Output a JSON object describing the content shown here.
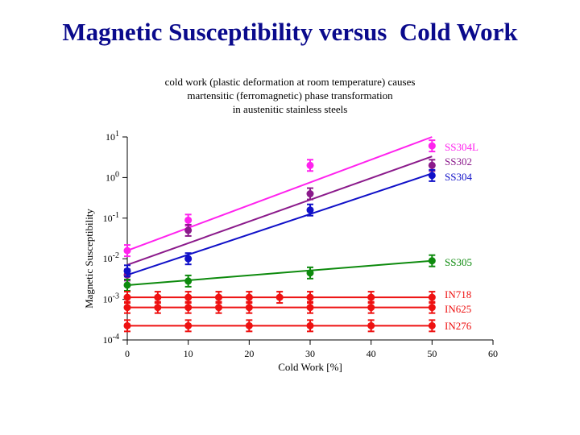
{
  "title": "Magnetic Susceptibility versus  Cold Work",
  "subtitle": [
    "cold work (plastic deformation at room temperature) causes",
    "martensitic (ferromagnetic) phase transformation",
    "in austenitic stainless steels"
  ],
  "chart_data": {
    "type": "scatter",
    "title": "Magnetic Susceptibility versus  Cold Work",
    "xlabel": "Cold Work [%]",
    "ylabel": "Magnetic Susceptibility",
    "xlim": [
      0,
      60
    ],
    "ylim_log10": [
      -4,
      1
    ],
    "yscale": "log",
    "x_ticks": [
      0,
      10,
      20,
      30,
      40,
      50,
      60
    ],
    "y_tick_exponents": [
      1,
      0,
      -1,
      -2,
      -3,
      -4
    ],
    "y_tick_base": "10",
    "series": [
      {
        "name": "SS304L",
        "color": "#ff22ee",
        "x": [
          0,
          10,
          30,
          50
        ],
        "log10_y": [
          -1.8,
          -1.05,
          0.3,
          0.78
        ],
        "fit_log10": [
          -1.8,
          1.0
        ]
      },
      {
        "name": "SS302",
        "color": "#8b1a8b",
        "x": [
          0,
          10,
          30,
          50
        ],
        "log10_y": [
          -2.4,
          -1.3,
          -0.4,
          0.3
        ],
        "fit_log10": [
          -2.15,
          0.52
        ]
      },
      {
        "name": "SS304",
        "color": "#1010c8",
        "x": [
          0,
          10,
          30,
          50
        ],
        "log10_y": [
          -2.3,
          -2.0,
          -0.8,
          0.05
        ],
        "fit_log10": [
          -2.4,
          0.1
        ]
      },
      {
        "name": "SS305",
        "color": "#0d8a0d",
        "x": [
          0,
          10,
          30,
          50
        ],
        "log10_y": [
          -2.65,
          -2.55,
          -2.35,
          -2.05
        ],
        "fit_log10": [
          -2.65,
          -2.05
        ]
      },
      {
        "name": "IN718",
        "color": "#ee1111",
        "x": [
          0,
          5,
          10,
          15,
          20,
          25,
          30,
          40,
          50
        ],
        "log10_y": [
          -2.95,
          -2.95,
          -2.95,
          -2.95,
          -2.95,
          -2.95,
          -2.95,
          -2.95,
          -2.95
        ],
        "fit_log10": [
          -2.95,
          -2.95
        ]
      },
      {
        "name": "IN625",
        "color": "#ee1111",
        "x": [
          0,
          5,
          10,
          15,
          20,
          30,
          40,
          50
        ],
        "log10_y": [
          -3.2,
          -3.2,
          -3.2,
          -3.2,
          -3.2,
          -3.2,
          -3.2,
          -3.2
        ],
        "fit_log10": [
          -3.2,
          -3.2
        ]
      },
      {
        "name": "IN276",
        "color": "#ee1111",
        "x": [
          0,
          10,
          20,
          30,
          40,
          50
        ],
        "log10_y": [
          -3.65,
          -3.65,
          -3.65,
          -3.65,
          -3.65,
          -3.65
        ],
        "fit_log10": [
          -3.65,
          -3.65
        ]
      }
    ]
  }
}
